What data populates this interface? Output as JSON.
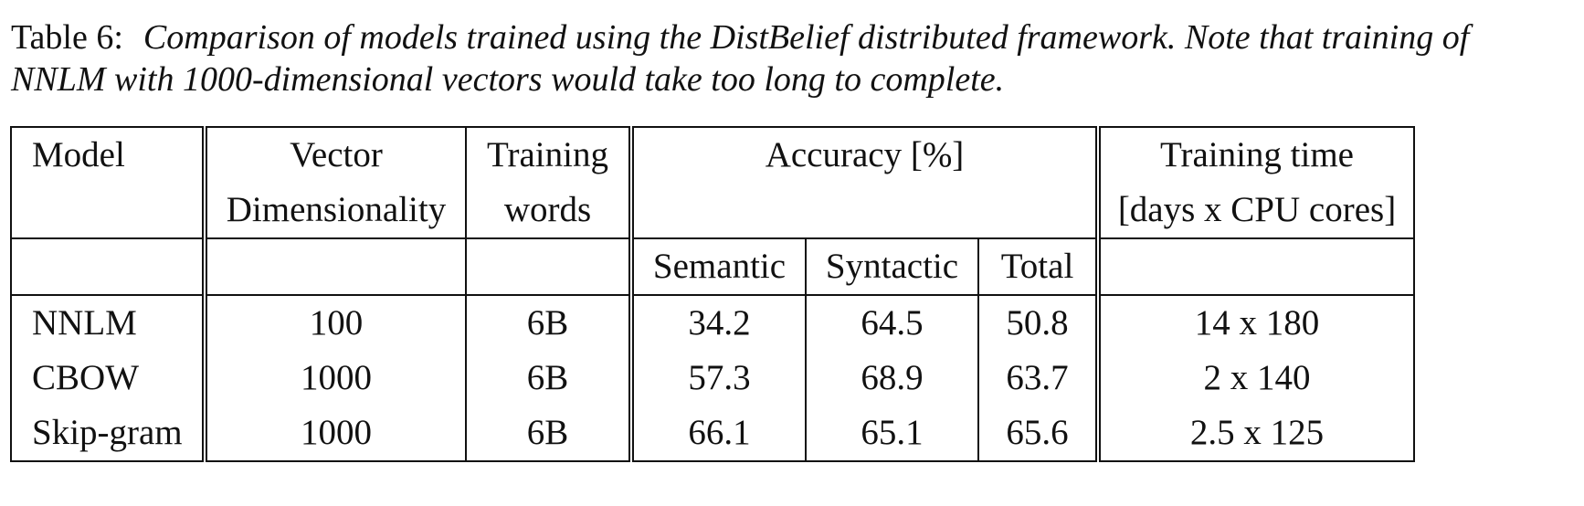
{
  "caption": {
    "label": "Table 6:",
    "text": "Comparison of models trained using the DistBelief distributed framework. Note that training of NNLM with 1000-dimensional vectors would take too long to complete."
  },
  "table": {
    "headers": {
      "model": "Model",
      "dim_line1": "Vector",
      "dim_line2": "Dimensionality",
      "words_line1": "Training",
      "words_line2": "words",
      "accuracy": "Accuracy [%]",
      "time_line1": "Training time",
      "time_line2": "[days x CPU cores]",
      "semantic": "Semantic",
      "syntactic": "Syntactic",
      "total": "Total"
    },
    "rows": [
      {
        "model": "NNLM",
        "dim": "100",
        "words": "6B",
        "semantic": "34.2",
        "syntactic": "64.5",
        "total": "50.8",
        "time": "14 x 180"
      },
      {
        "model": "CBOW",
        "dim": "1000",
        "words": "6B",
        "semantic": "57.3",
        "syntactic": "68.9",
        "total": "63.7",
        "time": "2 x 140"
      },
      {
        "model": "Skip-gram",
        "dim": "1000",
        "words": "6B",
        "semantic": "66.1",
        "syntactic": "65.1",
        "total": "65.6",
        "time": "2.5 x 125"
      }
    ]
  }
}
